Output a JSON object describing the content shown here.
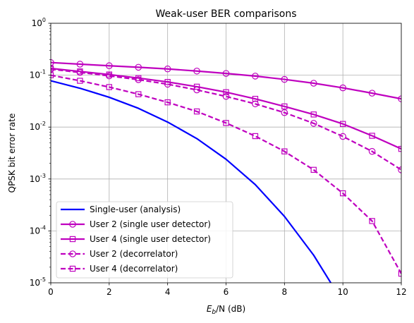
{
  "chart_data": {
    "type": "line",
    "title": "Weak-user BER comparisons",
    "xlabel_main": "E",
    "xlabel_sub": "b",
    "xlabel_rest": "/N (dB)",
    "ylabel": "QPSK bit error rate",
    "xlim": [
      0,
      12
    ],
    "ylim": [
      1e-05,
      1
    ],
    "yscale": "log",
    "grid": true,
    "legend_position": "lower-left",
    "x_ticks": [
      "0",
      "2",
      "4",
      "6",
      "8",
      "10",
      "12"
    ],
    "y_ticks": [
      {
        "base": "10",
        "exp": "-5",
        "value": 1e-05
      },
      {
        "base": "10",
        "exp": "-4",
        "value": 0.0001
      },
      {
        "base": "10",
        "exp": "-3",
        "value": 0.001
      },
      {
        "base": "10",
        "exp": "-2",
        "value": 0.01
      },
      {
        "base": "10",
        "exp": "-1",
        "value": 0.1
      },
      {
        "base": "10",
        "exp": "0",
        "value": 1
      }
    ],
    "x": [
      0,
      1,
      2,
      3,
      4,
      5,
      6,
      7,
      8,
      9,
      10,
      11,
      12
    ],
    "series": [
      {
        "name": "Single-user (analysis)",
        "color": "#0000ff",
        "dash": "solid",
        "marker": "none",
        "values": [
          0.078,
          0.056,
          0.0375,
          0.023,
          0.0125,
          0.006,
          0.0024,
          0.00078,
          0.00019,
          3.4e-05,
          4.2e-06,
          null,
          null
        ]
      },
      {
        "name": "User 2 (single user detector)",
        "color": "#bf00bf",
        "dash": "solid",
        "marker": "circle",
        "values": [
          0.175,
          0.163,
          0.152,
          0.142,
          0.132,
          0.12,
          0.108,
          0.096,
          0.083,
          0.07,
          0.057,
          0.045,
          0.035
        ]
      },
      {
        "name": "User 4 (single user detector)",
        "color": "#bf00bf",
        "dash": "solid",
        "marker": "square",
        "values": [
          0.135,
          0.118,
          0.103,
          0.088,
          0.074,
          0.06,
          0.047,
          0.035,
          0.025,
          0.0175,
          0.0115,
          0.0068,
          0.0038
        ]
      },
      {
        "name": "User 2 (decorrelator)",
        "color": "#bf00bf",
        "dash": "dashed",
        "marker": "circle",
        "values": [
          0.13,
          0.113,
          0.097,
          0.082,
          0.067,
          0.052,
          0.039,
          0.028,
          0.019,
          0.0118,
          0.0066,
          0.0034,
          0.0015
        ]
      },
      {
        "name": "User 4 (decorrelator)",
        "color": "#bf00bf",
        "dash": "dashed",
        "marker": "square",
        "values": [
          0.1,
          0.078,
          0.059,
          0.043,
          0.03,
          0.02,
          0.012,
          0.0067,
          0.0034,
          0.0015,
          0.00053,
          0.000155,
          1.5e-05
        ]
      }
    ]
  }
}
